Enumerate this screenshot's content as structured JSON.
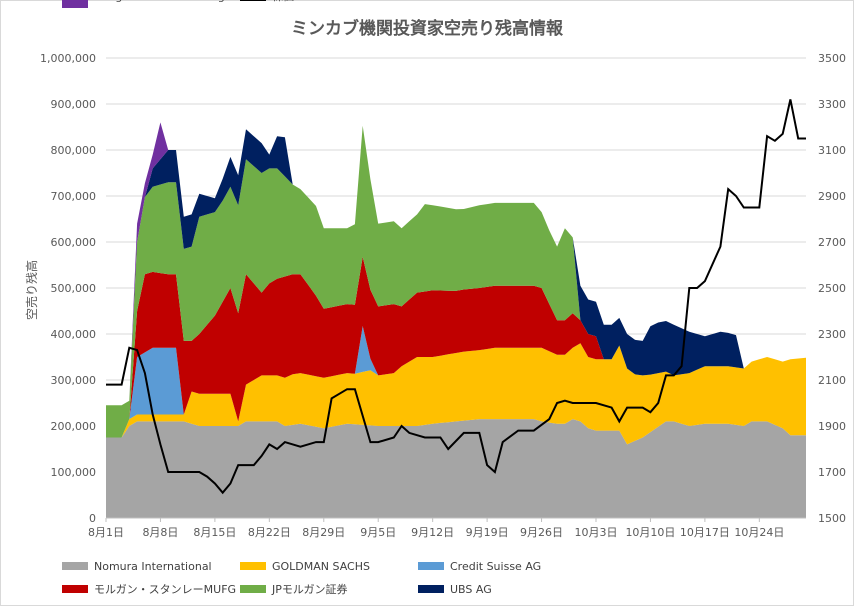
{
  "chart_data": {
    "type": "area",
    "title": "ミンカブ機関投資家空売り残高情報",
    "ylabel": "空売り残高",
    "y2label": "",
    "ylim": [
      0,
      1000000
    ],
    "y2lim": [
      1500,
      3500
    ],
    "yticks": [
      0,
      100000,
      200000,
      300000,
      400000,
      500000,
      600000,
      700000,
      800000,
      900000,
      1000000
    ],
    "ytick_labels": [
      "0",
      "100,000",
      "200,000",
      "300,000",
      "400,000",
      "500,000",
      "600,000",
      "700,000",
      "800,000",
      "900,000",
      "1,000,000"
    ],
    "y2ticks": [
      1500,
      1700,
      1900,
      2100,
      2300,
      2500,
      2700,
      2900,
      3100,
      3300,
      3500
    ],
    "y2tick_labels": [
      "1500",
      "1700",
      "1900",
      "2100",
      "2300",
      "2500",
      "2700",
      "2900",
      "3100",
      "3300",
      "3500"
    ],
    "xtick_labels": [
      "8月1日",
      "8月8日",
      "8月15日",
      "8月22日",
      "8月29日",
      "9月5日",
      "9月12日",
      "9月19日",
      "9月26日",
      "10月3日",
      "10月10日",
      "10月17日",
      "10月24日"
    ],
    "xtick_index": [
      0,
      7,
      14,
      21,
      28,
      35,
      42,
      49,
      56,
      63,
      70,
      77,
      84
    ],
    "n_days": 91,
    "grid": true,
    "legend_position": "bottom",
    "series": [
      {
        "name": "Nomura International",
        "color": "#a5a5a5",
        "kind": "area",
        "points": [
          [
            0,
            175000
          ],
          [
            2,
            175000
          ],
          [
            3,
            200000
          ],
          [
            4,
            210000
          ],
          [
            6,
            210000
          ],
          [
            10,
            210000
          ],
          [
            11,
            205000
          ],
          [
            12,
            200000
          ],
          [
            17,
            200000
          ],
          [
            18,
            210000
          ],
          [
            22,
            210000
          ],
          [
            23,
            200000
          ],
          [
            25,
            205000
          ],
          [
            28,
            195000
          ],
          [
            31,
            205000
          ],
          [
            35,
            200000
          ],
          [
            40,
            200000
          ],
          [
            42,
            205000
          ],
          [
            45,
            210000
          ],
          [
            48,
            215000
          ],
          [
            55,
            215000
          ],
          [
            56,
            210000
          ],
          [
            58,
            205000
          ],
          [
            59,
            205000
          ],
          [
            60,
            215000
          ],
          [
            61,
            210000
          ],
          [
            62,
            195000
          ],
          [
            63,
            190000
          ],
          [
            66,
            190000
          ],
          [
            67,
            160000
          ],
          [
            69,
            175000
          ],
          [
            72,
            210000
          ],
          [
            73,
            210000
          ],
          [
            75,
            200000
          ],
          [
            77,
            205000
          ],
          [
            80,
            205000
          ],
          [
            82,
            200000
          ],
          [
            83,
            210000
          ],
          [
            85,
            210000
          ],
          [
            87,
            195000
          ],
          [
            88,
            180000
          ],
          [
            91,
            180000
          ]
        ]
      },
      {
        "name": "GOLDMAN SACHS",
        "color": "#ffc000",
        "kind": "area",
        "points": [
          [
            0,
            0
          ],
          [
            2,
            0
          ],
          [
            3,
            15000
          ],
          [
            10,
            15000
          ],
          [
            11,
            70000
          ],
          [
            16,
            70000
          ],
          [
            17,
            10000
          ],
          [
            18,
            80000
          ],
          [
            20,
            100000
          ],
          [
            22,
            100000
          ],
          [
            24,
            110000
          ],
          [
            27,
            110000
          ],
          [
            28,
            110000
          ],
          [
            31,
            110000
          ],
          [
            32,
            110000
          ],
          [
            34,
            120000
          ],
          [
            35,
            110000
          ],
          [
            37,
            115000
          ],
          [
            38,
            130000
          ],
          [
            40,
            150000
          ],
          [
            42,
            145000
          ],
          [
            46,
            150000
          ],
          [
            48,
            150000
          ],
          [
            50,
            155000
          ],
          [
            55,
            155000
          ],
          [
            56,
            160000
          ],
          [
            58,
            150000
          ],
          [
            59,
            150000
          ],
          [
            60,
            155000
          ],
          [
            61,
            170000
          ],
          [
            62,
            155000
          ],
          [
            63,
            155000
          ],
          [
            65,
            155000
          ],
          [
            66,
            185000
          ],
          [
            68,
            145000
          ],
          [
            70,
            125000
          ],
          [
            73,
            100000
          ],
          [
            75,
            115000
          ],
          [
            77,
            125000
          ],
          [
            79,
            125000
          ],
          [
            81,
            125000
          ],
          [
            82,
            125000
          ],
          [
            83,
            130000
          ],
          [
            85,
            140000
          ],
          [
            87,
            145000
          ],
          [
            88,
            165000
          ],
          [
            91,
            170000
          ]
        ]
      },
      {
        "name": "Credit Suisse AG",
        "color": "#5b9bd5",
        "kind": "area",
        "points": [
          [
            0,
            0
          ],
          [
            3,
            0
          ],
          [
            4,
            125000
          ],
          [
            6,
            145000
          ],
          [
            9,
            145000
          ],
          [
            10,
            0
          ],
          [
            31,
            0
          ],
          [
            32,
            0
          ],
          [
            33,
            100000
          ],
          [
            34,
            25000
          ],
          [
            35,
            0
          ],
          [
            91,
            0
          ]
        ]
      },
      {
        "name": "モルガン・スタンレーMUFG",
        "color": "#c00000",
        "kind": "area",
        "points": [
          [
            0,
            0
          ],
          [
            3,
            0
          ],
          [
            4,
            100000
          ],
          [
            5,
            170000
          ],
          [
            6,
            165000
          ],
          [
            8,
            160000
          ],
          [
            10,
            160000
          ],
          [
            11,
            110000
          ],
          [
            13,
            150000
          ],
          [
            14,
            170000
          ],
          [
            16,
            230000
          ],
          [
            18,
            240000
          ],
          [
            20,
            180000
          ],
          [
            21,
            200000
          ],
          [
            23,
            220000
          ],
          [
            25,
            215000
          ],
          [
            27,
            175000
          ],
          [
            28,
            150000
          ],
          [
            30,
            150000
          ],
          [
            32,
            150000
          ],
          [
            34,
            150000
          ],
          [
            35,
            150000
          ],
          [
            37,
            150000
          ],
          [
            38,
            130000
          ],
          [
            40,
            140000
          ],
          [
            42,
            145000
          ],
          [
            45,
            135000
          ],
          [
            48,
            135000
          ],
          [
            52,
            135000
          ],
          [
            55,
            135000
          ],
          [
            56,
            130000
          ],
          [
            58,
            75000
          ],
          [
            60,
            75000
          ],
          [
            61,
            50000
          ],
          [
            63,
            50000
          ],
          [
            64,
            0
          ],
          [
            91,
            0
          ]
        ]
      },
      {
        "name": "JPモルガン証券",
        "color": "#70ad47",
        "kind": "area",
        "points": [
          [
            0,
            70000
          ],
          [
            2,
            70000
          ],
          [
            3,
            40000
          ],
          [
            4,
            150000
          ],
          [
            6,
            185000
          ],
          [
            8,
            200000
          ],
          [
            10,
            200000
          ],
          [
            11,
            205000
          ],
          [
            12,
            255000
          ],
          [
            14,
            225000
          ],
          [
            15,
            220000
          ],
          [
            16,
            220000
          ],
          [
            18,
            250000
          ],
          [
            20,
            260000
          ],
          [
            22,
            240000
          ],
          [
            24,
            195000
          ],
          [
            25,
            185000
          ],
          [
            27,
            195000
          ],
          [
            28,
            175000
          ],
          [
            31,
            165000
          ],
          [
            32,
            175000
          ],
          [
            33,
            285000
          ],
          [
            34,
            240000
          ],
          [
            35,
            180000
          ],
          [
            37,
            180000
          ],
          [
            38,
            170000
          ],
          [
            40,
            170000
          ],
          [
            41,
            190000
          ],
          [
            42,
            185000
          ],
          [
            44,
            180000
          ],
          [
            46,
            175000
          ],
          [
            48,
            180000
          ],
          [
            52,
            180000
          ],
          [
            55,
            180000
          ],
          [
            56,
            165000
          ],
          [
            57,
            160000
          ],
          [
            58,
            160000
          ],
          [
            59,
            200000
          ],
          [
            60,
            165000
          ],
          [
            61,
            0
          ],
          [
            91,
            0
          ]
        ]
      },
      {
        "name": "UBS AG",
        "color": "#002060",
        "kind": "area",
        "points": [
          [
            0,
            0
          ],
          [
            3,
            0
          ],
          [
            4,
            0
          ],
          [
            5,
            0
          ],
          [
            6,
            40000
          ],
          [
            8,
            70000
          ],
          [
            10,
            70000
          ],
          [
            11,
            70000
          ],
          [
            12,
            50000
          ],
          [
            14,
            30000
          ],
          [
            16,
            65000
          ],
          [
            18,
            65000
          ],
          [
            20,
            65000
          ],
          [
            21,
            30000
          ],
          [
            22,
            70000
          ],
          [
            23,
            85000
          ],
          [
            24,
            0
          ],
          [
            60,
            0
          ],
          [
            61,
            75000
          ],
          [
            63,
            75000
          ],
          [
            65,
            75000
          ],
          [
            66,
            60000
          ],
          [
            67,
            75000
          ],
          [
            69,
            75000
          ],
          [
            70,
            105000
          ],
          [
            71,
            110000
          ],
          [
            73,
            110000
          ],
          [
            75,
            90000
          ],
          [
            77,
            65000
          ],
          [
            78,
            70000
          ],
          [
            79,
            75000
          ],
          [
            81,
            70000
          ],
          [
            82,
            0
          ],
          [
            91,
            0
          ]
        ]
      },
      {
        "name": "Integrated Core Strategies",
        "color": "#7030a0",
        "kind": "area",
        "points": [
          [
            0,
            0
          ],
          [
            3,
            0
          ],
          [
            4,
            40000
          ],
          [
            5,
            30000
          ],
          [
            6,
            30000
          ],
          [
            7,
            80000
          ],
          [
            8,
            0
          ],
          [
            91,
            0
          ]
        ]
      },
      {
        "name": "株価",
        "color": "#000000",
        "kind": "line",
        "axis": "right",
        "points": [
          [
            0,
            2080
          ],
          [
            2,
            2080
          ],
          [
            3,
            2240
          ],
          [
            4,
            2230
          ],
          [
            5,
            2130
          ],
          [
            6,
            1950
          ],
          [
            7,
            1820
          ],
          [
            8,
            1700
          ],
          [
            10,
            1700
          ],
          [
            12,
            1700
          ],
          [
            13,
            1680
          ],
          [
            14,
            1650
          ],
          [
            15,
            1610
          ],
          [
            16,
            1650
          ],
          [
            17,
            1730
          ],
          [
            19,
            1730
          ],
          [
            20,
            1770
          ],
          [
            21,
            1820
          ],
          [
            22,
            1800
          ],
          [
            23,
            1830
          ],
          [
            25,
            1810
          ],
          [
            27,
            1830
          ],
          [
            28,
            1830
          ],
          [
            29,
            2020
          ],
          [
            30,
            2040
          ],
          [
            31,
            2060
          ],
          [
            32,
            2060
          ],
          [
            34,
            1830
          ],
          [
            35,
            1830
          ],
          [
            37,
            1850
          ],
          [
            38,
            1900
          ],
          [
            39,
            1870
          ],
          [
            41,
            1850
          ],
          [
            43,
            1850
          ],
          [
            44,
            1800
          ],
          [
            46,
            1870
          ],
          [
            48,
            1870
          ],
          [
            49,
            1730
          ],
          [
            50,
            1700
          ],
          [
            51,
            1830
          ],
          [
            53,
            1880
          ],
          [
            55,
            1880
          ],
          [
            57,
            1930
          ],
          [
            58,
            2000
          ],
          [
            59,
            2010
          ],
          [
            60,
            2000
          ],
          [
            62,
            2000
          ],
          [
            63,
            2000
          ],
          [
            65,
            1980
          ],
          [
            66,
            1920
          ],
          [
            67,
            1980
          ],
          [
            69,
            1980
          ],
          [
            70,
            1960
          ],
          [
            71,
            2000
          ],
          [
            72,
            2120
          ],
          [
            73,
            2120
          ],
          [
            74,
            2160
          ],
          [
            75,
            2500
          ],
          [
            76,
            2500
          ],
          [
            77,
            2530
          ],
          [
            79,
            2680
          ],
          [
            80,
            2930
          ],
          [
            81,
            2900
          ],
          [
            82,
            2850
          ],
          [
            84,
            2850
          ],
          [
            85,
            3160
          ],
          [
            86,
            3140
          ],
          [
            87,
            3170
          ],
          [
            88,
            3320
          ],
          [
            89,
            3150
          ],
          [
            90,
            3150
          ]
        ]
      }
    ]
  }
}
